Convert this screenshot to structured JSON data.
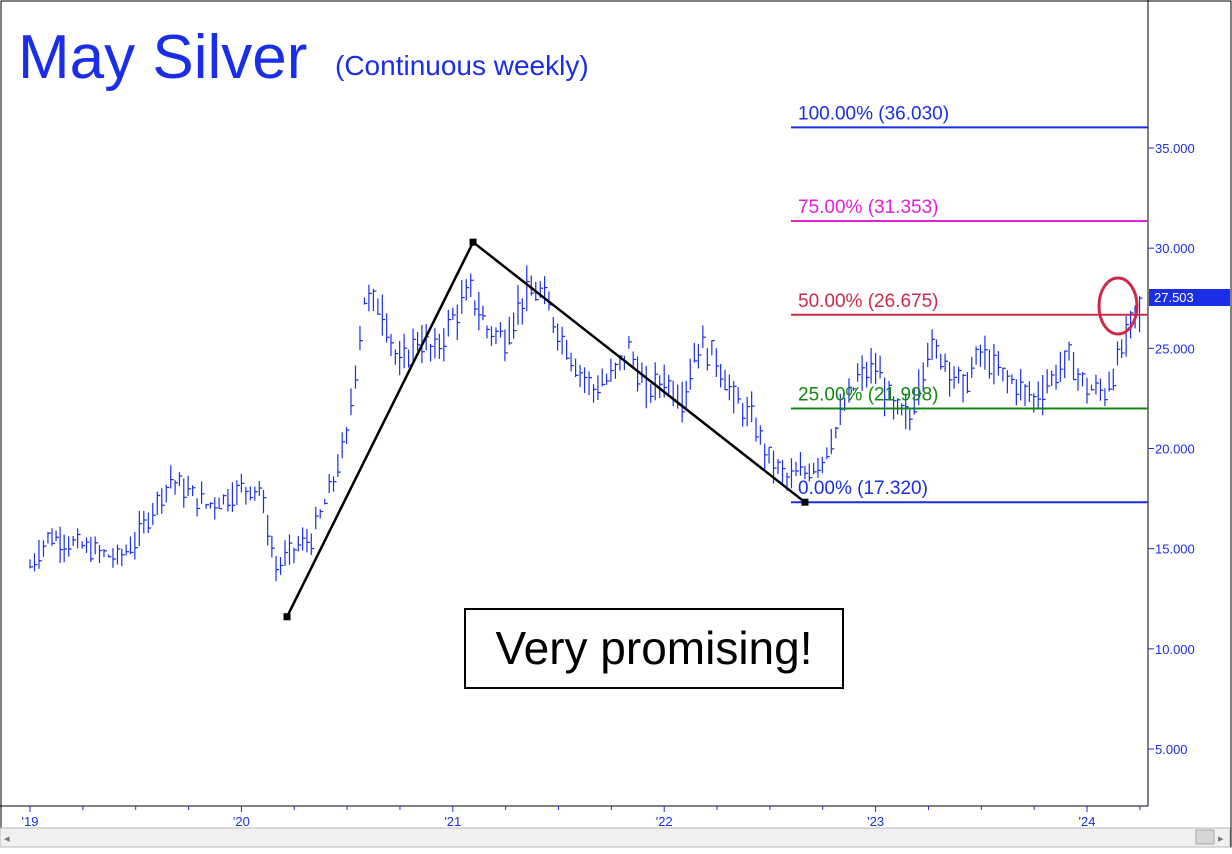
{
  "chart_data": {
    "type": "line",
    "title": "May Silver",
    "subtitle": "(Continuous weekly)",
    "x_tick_labels": [
      "'19",
      "'20",
      "'21",
      "'22",
      "'23",
      "'24"
    ],
    "y_ticks": [
      "35.000",
      "30.000",
      "25.000",
      "20.000",
      "15.000",
      "10.000",
      "5.000"
    ],
    "ylim": [
      2.5,
      41
    ],
    "grid": false,
    "last_price": "27.503",
    "last_price_value": 27.503,
    "annotation": "Very promising!",
    "retracement_levels": [
      {
        "label": "100.00% (36.030)",
        "value": 36.03,
        "color": "#1a2ee8"
      },
      {
        "label": "75.00% (31.353)",
        "value": 31.353,
        "color": "#e51fd8"
      },
      {
        "label": "50.00% (26.675)",
        "value": 26.675,
        "color": "#cc2a49"
      },
      {
        "label": "25.00% (21.998)",
        "value": 21.998,
        "color": "#118811"
      },
      {
        "label": "0.00% (17.320)",
        "value": 17.32,
        "color": "#1a2ee8"
      }
    ],
    "swing_line": [
      {
        "date": "2020-03-20",
        "value": 11.6
      },
      {
        "date": "2021-02-05",
        "value": 30.3
      },
      {
        "date": "2022-09-01",
        "value": 17.32
      }
    ],
    "series": [
      {
        "price_points": [
          [
            "2019-01-01",
            14.1
          ],
          [
            "2019-02-01",
            15.6
          ],
          [
            "2019-03-01",
            15.4
          ],
          [
            "2019-04-01",
            15.1
          ],
          [
            "2019-05-01",
            14.8
          ],
          [
            "2019-06-01",
            14.5
          ],
          [
            "2019-07-01",
            15.3
          ],
          [
            "2019-08-01",
            17.0
          ],
          [
            "2019-09-01",
            18.5
          ],
          [
            "2019-10-01",
            17.8
          ],
          [
            "2019-11-01",
            17.2
          ],
          [
            "2019-12-01",
            17.5
          ],
          [
            "2020-01-01",
            18.0
          ],
          [
            "2020-02-01",
            18.1
          ],
          [
            "2020-03-01",
            14.0
          ],
          [
            "2020-04-01",
            15.0
          ],
          [
            "2020-05-01",
            15.5
          ],
          [
            "2020-06-01",
            17.8
          ],
          [
            "2020-07-01",
            20.5
          ],
          [
            "2020-08-01",
            27.5
          ],
          [
            "2020-09-01",
            27.0
          ],
          [
            "2020-10-01",
            24.0
          ],
          [
            "2020-11-01",
            25.5
          ],
          [
            "2020-12-01",
            24.8
          ],
          [
            "2021-01-01",
            26.5
          ],
          [
            "2021-02-01",
            27.8
          ],
          [
            "2021-03-01",
            26.0
          ],
          [
            "2021-04-01",
            25.5
          ],
          [
            "2021-05-01",
            27.5
          ],
          [
            "2021-06-01",
            27.8
          ],
          [
            "2021-07-01",
            26.0
          ],
          [
            "2021-08-01",
            24.2
          ],
          [
            "2021-09-01",
            23.0
          ],
          [
            "2021-10-01",
            23.5
          ],
          [
            "2021-11-01",
            25.0
          ],
          [
            "2021-12-01",
            22.8
          ],
          [
            "2022-01-01",
            23.5
          ],
          [
            "2022-02-01",
            22.5
          ],
          [
            "2022-03-01",
            25.2
          ],
          [
            "2022-04-01",
            24.5
          ],
          [
            "2022-05-01",
            22.5
          ],
          [
            "2022-06-01",
            21.5
          ],
          [
            "2022-07-01",
            19.5
          ],
          [
            "2022-08-01",
            18.5
          ],
          [
            "2022-09-01",
            18.8
          ],
          [
            "2022-10-01",
            19.5
          ],
          [
            "2022-11-01",
            21.5
          ],
          [
            "2022-12-01",
            23.5
          ],
          [
            "2023-01-01",
            24.0
          ],
          [
            "2023-02-01",
            22.0
          ],
          [
            "2023-03-01",
            21.5
          ],
          [
            "2023-04-01",
            25.0
          ],
          [
            "2023-05-01",
            24.5
          ],
          [
            "2023-06-01",
            23.0
          ],
          [
            "2023-07-01",
            24.8
          ],
          [
            "2023-08-01",
            23.8
          ],
          [
            "2023-09-01",
            23.2
          ],
          [
            "2023-10-01",
            22.5
          ],
          [
            "2023-11-01",
            23.5
          ],
          [
            "2023-12-01",
            24.5
          ],
          [
            "2024-01-01",
            23.0
          ],
          [
            "2024-02-01",
            22.8
          ],
          [
            "2024-03-01",
            24.8
          ],
          [
            "2024-04-01",
            27.5
          ]
        ]
      }
    ]
  }
}
